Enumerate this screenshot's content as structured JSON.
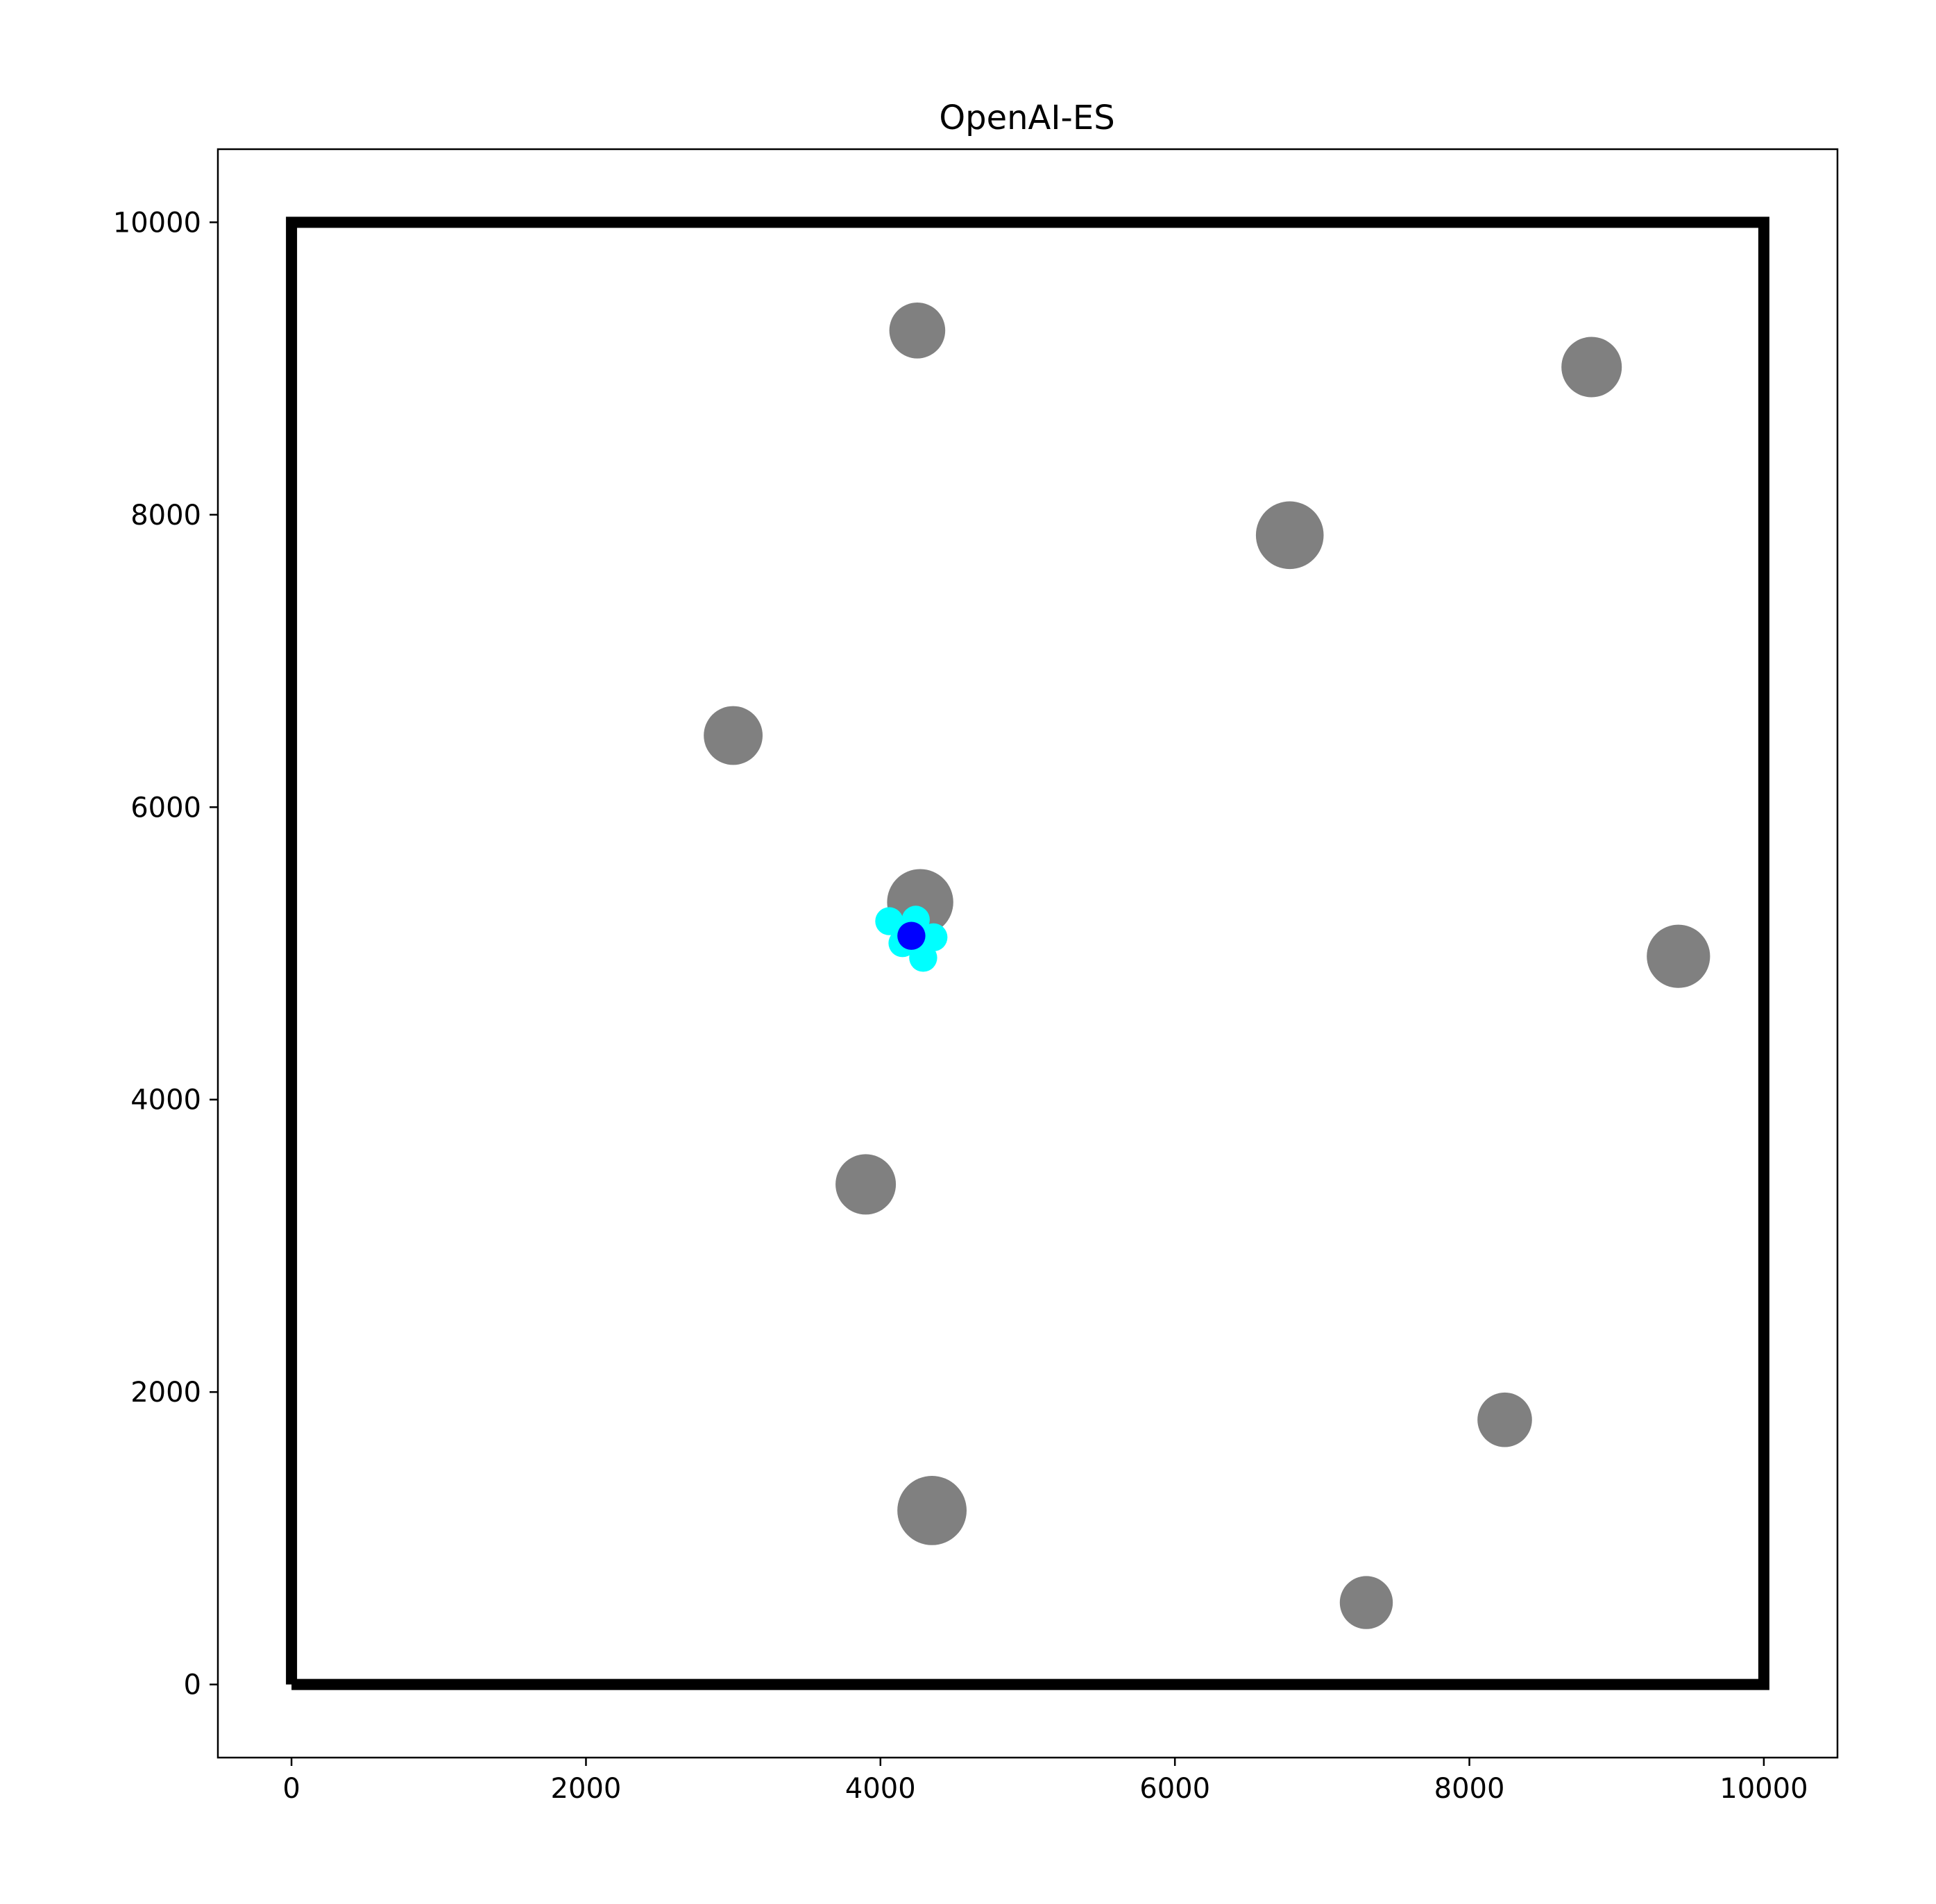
{
  "chart_data": {
    "type": "scatter",
    "title": "OpenAI-ES",
    "xlabel": "",
    "ylabel": "",
    "xlim": [
      -500,
      10500
    ],
    "ylim": [
      -500,
      10500
    ],
    "xticks": [
      0,
      2000,
      4000,
      6000,
      8000,
      10000
    ],
    "yticks": [
      0,
      2000,
      4000,
      6000,
      8000,
      10000
    ],
    "xtick_labels": [
      "0",
      "2000",
      "4000",
      "6000",
      "8000",
      "10000"
    ],
    "ytick_labels": [
      "0",
      "2000",
      "4000",
      "6000",
      "8000",
      "10000"
    ],
    "grid": false,
    "boundary": {
      "x": [
        0,
        10000,
        10000,
        0,
        0
      ],
      "y": [
        0,
        0,
        10000,
        10000,
        0
      ],
      "color": "#000000"
    },
    "obstacles": {
      "color": "#808080",
      "points": [
        {
          "x": 4250,
          "y": 9260,
          "r": 190
        },
        {
          "x": 8830,
          "y": 9010,
          "r": 205
        },
        {
          "x": 6780,
          "y": 7860,
          "r": 230
        },
        {
          "x": 3000,
          "y": 6490,
          "r": 200
        },
        {
          "x": 4270,
          "y": 5350,
          "r": 225
        },
        {
          "x": 9420,
          "y": 4980,
          "r": 215
        },
        {
          "x": 3900,
          "y": 3420,
          "r": 205
        },
        {
          "x": 8240,
          "y": 1810,
          "r": 185
        },
        {
          "x": 4350,
          "y": 1190,
          "r": 235
        },
        {
          "x": 7300,
          "y": 560,
          "r": 180
        }
      ]
    },
    "samples": {
      "color": "#00ffff",
      "r": 95,
      "points": [
        {
          "x": 4060,
          "y": 5220
        },
        {
          "x": 4240,
          "y": 5230
        },
        {
          "x": 4360,
          "y": 5110
        },
        {
          "x": 4150,
          "y": 5070
        },
        {
          "x": 4290,
          "y": 4970
        }
      ]
    },
    "center": {
      "color": "#0000ff",
      "r": 95,
      "x": 4210,
      "y": 5120
    }
  }
}
